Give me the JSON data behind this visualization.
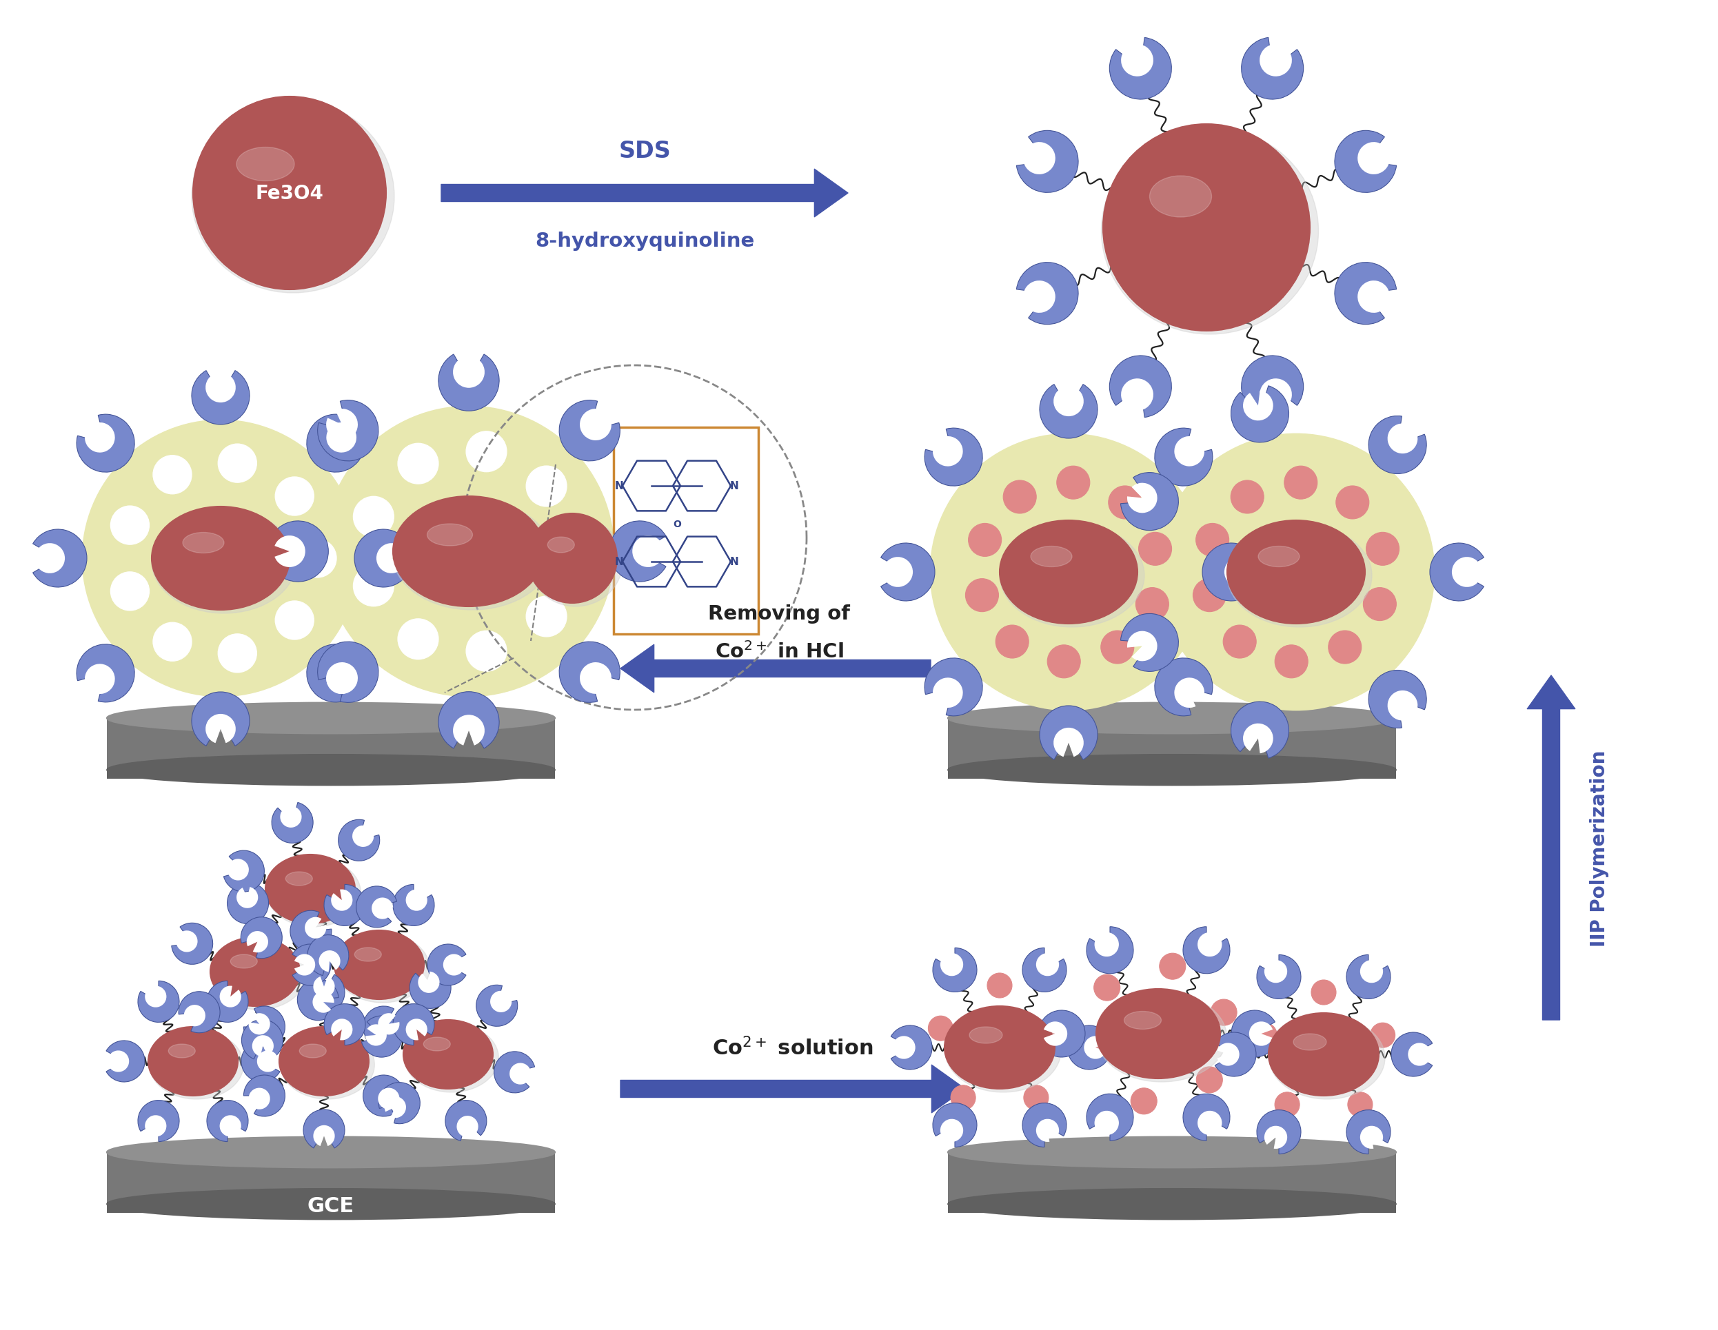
{
  "bg_color": "#ffffff",
  "fe3o4_color": "#b05555",
  "fe3o4_highlight": "#cc7777",
  "fe3o4_edge": "#8b4040",
  "yellow_shell_color": "#e8e8b0",
  "yellow_shell_edge": "#b8b870",
  "gray_top_color": "#909090",
  "gray_mid_color": "#787878",
  "gray_bot_color": "#606060",
  "gray_edge_color": "#404040",
  "blue_arrow_color": "#4455aa",
  "blue_monomer_fill": "#7788cc",
  "blue_monomer_edge": "#445599",
  "pink_cobalt_color": "#e08888",
  "pink_cobalt_edge": "#c06060",
  "sds_text": "SDS",
  "hydroxy_text": "8-hydroxyquinoline",
  "co2_solution_text": "Co$^{2+}$ solution",
  "removing_line1": "Removing of",
  "removing_line2": "Co$^{2+}$ in HCl",
  "iip_text": "IIP Polymerization",
  "gce_text": "GCE",
  "fe3o4_label": "Fe3O4",
  "struct_color": "#334488",
  "orange_rect_color": "#cc8833",
  "dashed_circle_color": "#888888"
}
